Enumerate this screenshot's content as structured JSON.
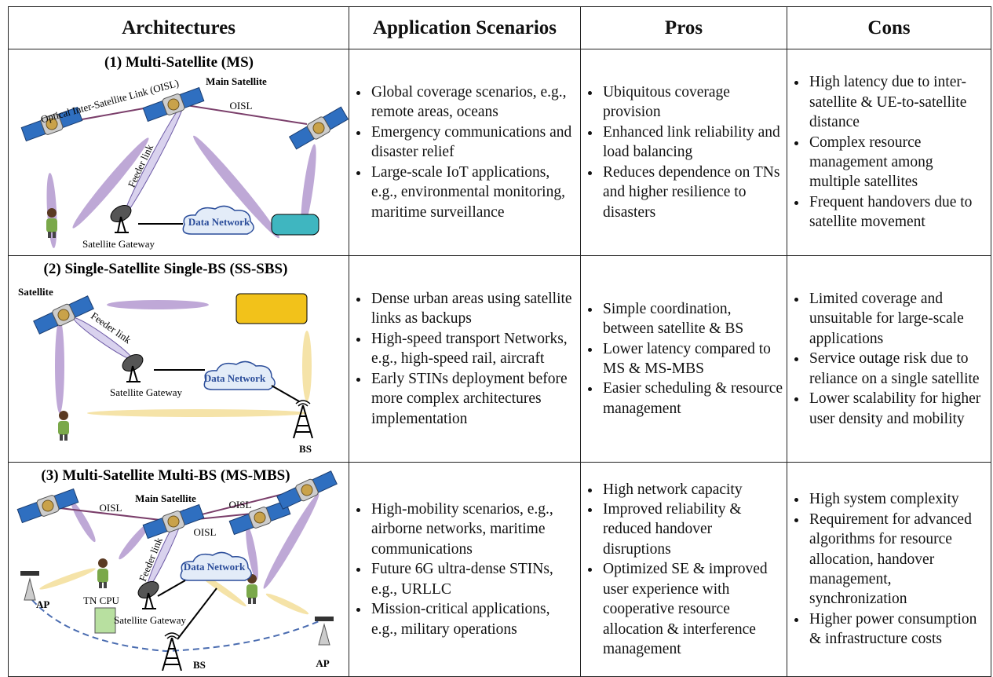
{
  "table": {
    "header": [
      "Architectures",
      "Application Scenarios",
      "Pros",
      "Cons"
    ],
    "rows": [
      {
        "architecture": {
          "title": "(1) Multi-Satellite (MS)",
          "labels": [
            "Optical Inter-Satellite Link (OISL)",
            "Main Satellite",
            "OISL",
            "Feeder link",
            "Data Network",
            "Satellite Gateway"
          ]
        },
        "scenarios": [
          "Global coverage scenarios, e.g., remote areas, oceans",
          "Emergency communications and disaster relief",
          "Large-scale IoT applications, e.g., environmental monitoring, maritime surveillance"
        ],
        "pros": [
          "Ubiquitous coverage provision",
          "Enhanced link reliability and load balancing",
          "Reduces dependence on TNs and higher resilience to disasters"
        ],
        "cons": [
          "High latency due to inter-satellite & UE-to-satellite distance",
          "Complex resource management among multiple satellites",
          "Frequent handovers due to satellite movement"
        ]
      },
      {
        "architecture": {
          "title": "(2) Single-Satellite Single-BS (SS-SBS)",
          "labels": [
            "Satellite",
            "Feeder link",
            "Data Network",
            "Satellite Gateway",
            "BS"
          ]
        },
        "scenarios": [
          "Dense urban areas using satellite links as backups",
          "High-speed transport Networks, e.g., high-speed rail, aircraft",
          "Early STINs deployment before more complex architectures implementation"
        ],
        "pros": [
          "Simple coordination, between satellite & BS",
          "Lower latency compared to MS & MS-MBS",
          "Easier scheduling & resource management"
        ],
        "cons": [
          "Limited coverage and unsuitable for large-scale applications",
          "Service outage risk due to reliance on a single satellite",
          "Lower scalability for higher user density and mobility"
        ]
      },
      {
        "architecture": {
          "title": "(3) Multi-Satellite Multi-BS (MS-MBS)",
          "labels": [
            "Main Satellite",
            "OISL",
            "OISL",
            "OISL",
            "Feeder link",
            "Data Network",
            "AP",
            "TN CPU",
            "Satellite Gateway",
            "BS",
            "AP"
          ]
        },
        "scenarios": [
          "High-mobility scenarios, e.g., airborne networks, maritime communications",
          "Future 6G ultra-dense STINs, e.g., URLLC",
          "Mission-critical applications, e.g., military operations"
        ],
        "pros": [
          "High network capacity",
          "Improved reliability & reduced handover disruptions",
          "Optimized SE & improved user experience with cooperative resource allocation & interference management"
        ],
        "cons": [
          "High system complexity",
          "Requirement for advanced algorithms for resource allocation, handover management, synchronization",
          "Higher power consumption & infrastructure costs"
        ]
      }
    ]
  }
}
